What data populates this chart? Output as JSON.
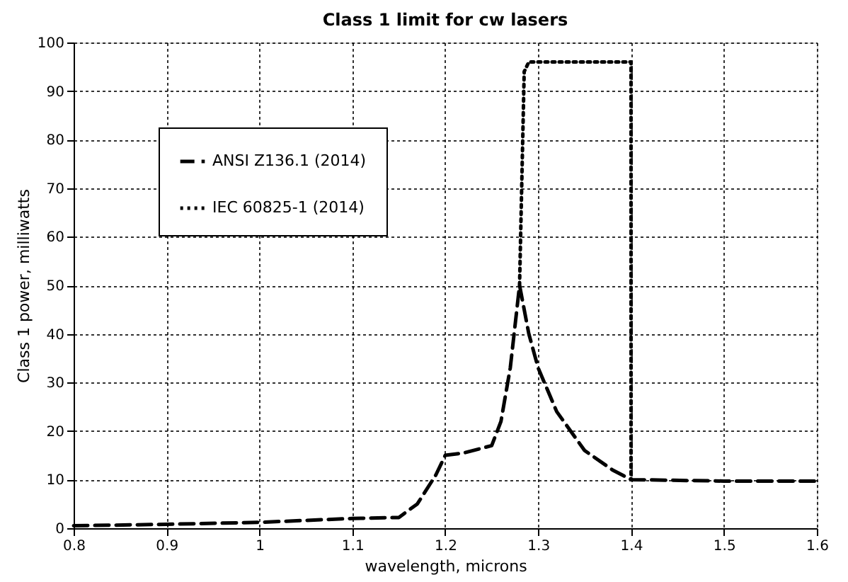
{
  "chart_data": {
    "type": "line",
    "title": "Class 1 limit for cw lasers",
    "xlabel": "wavelength, microns",
    "ylabel": "Class 1 power, milliwatts",
    "xlim": [
      0.8,
      1.6
    ],
    "xticks": [
      0.8,
      0.9,
      1,
      1.1,
      1.2,
      1.3,
      1.4,
      1.5,
      1.6
    ],
    "ylim": [
      0,
      100
    ],
    "yticks": [
      0,
      10,
      20,
      30,
      40,
      50,
      60,
      70,
      80,
      90,
      100
    ],
    "grid": true,
    "legend": "top left",
    "marker": "none",
    "series": [
      {
        "name": "ANSI Z136.1 (2014)",
        "color": "#000000",
        "line_style": "dashed",
        "x": [
          0.8,
          0.9,
          1.0,
          1.1,
          1.15,
          1.17,
          1.19,
          1.2,
          1.22,
          1.25,
          1.26,
          1.27,
          1.28,
          1.29,
          1.3,
          1.32,
          1.35,
          1.38,
          1.4,
          1.5,
          1.6
        ],
        "values": [
          0.5,
          0.8,
          1.2,
          2,
          2.2,
          5,
          11,
          15,
          15.5,
          17,
          22,
          33,
          50,
          40,
          33,
          24,
          16,
          12,
          10,
          9.7,
          9.7
        ]
      },
      {
        "name": "IEC 60825-1 (2014)",
        "color": "#000000",
        "line_style": "dotted",
        "x": [
          1.28,
          1.285,
          1.29,
          1.4,
          1.4
        ],
        "values": [
          50,
          94,
          96,
          96,
          10
        ]
      }
    ]
  }
}
